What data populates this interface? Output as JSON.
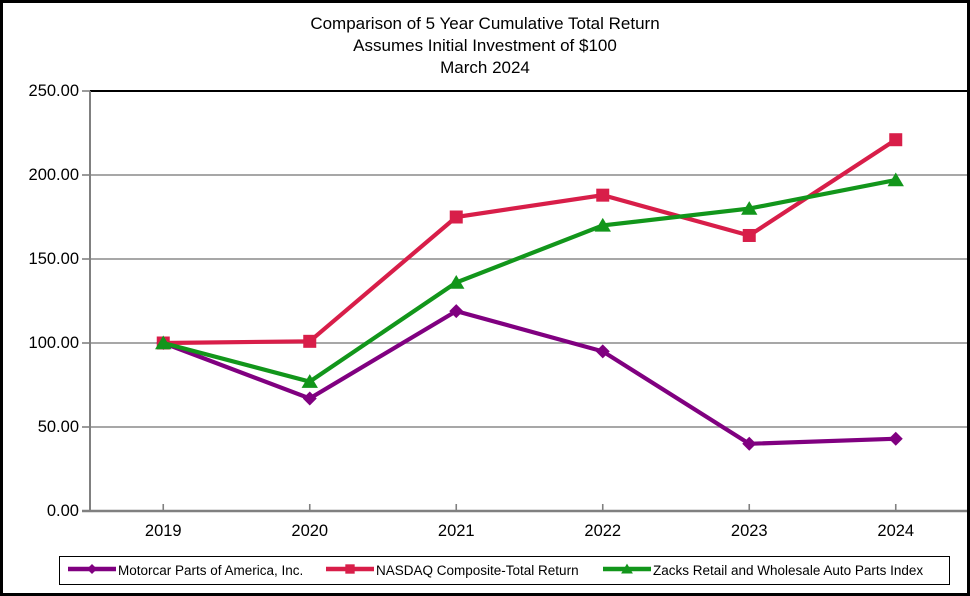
{
  "chart_data": {
    "type": "line",
    "title": "Comparison of 5 Year Cumulative Total Return",
    "subtitle": "Assumes Initial Investment of $100",
    "date_line": "March 2024",
    "categories": [
      "2019",
      "2020",
      "2021",
      "2022",
      "2023",
      "2024"
    ],
    "series": [
      {
        "name": "Motorcar Parts of America, Inc.",
        "color": "#800080",
        "marker": "diamond",
        "values": [
          100,
          67,
          119,
          95,
          40,
          43
        ]
      },
      {
        "name": "NASDAQ Composite-Total Return",
        "color": "#D81E49",
        "marker": "square",
        "values": [
          100,
          101,
          175,
          188,
          164,
          221
        ]
      },
      {
        "name": "Zacks Retail and Wholesale Auto Parts Index",
        "color": "#12961B",
        "marker": "triangle",
        "values": [
          100,
          77,
          136,
          170,
          180,
          197
        ]
      }
    ],
    "ylim": [
      0,
      250
    ],
    "ytick_step": 50,
    "ytick_labels": [
      "0.00",
      "50.00",
      "100.00",
      "150.00",
      "200.00",
      "250.00"
    ],
    "grid": "horizontal",
    "legend_position": "bottom",
    "axis_color": "#808080",
    "grid_color": "#8A8A8A",
    "top_gridline_color": "#000000",
    "background_color": "#FFFFFF"
  }
}
